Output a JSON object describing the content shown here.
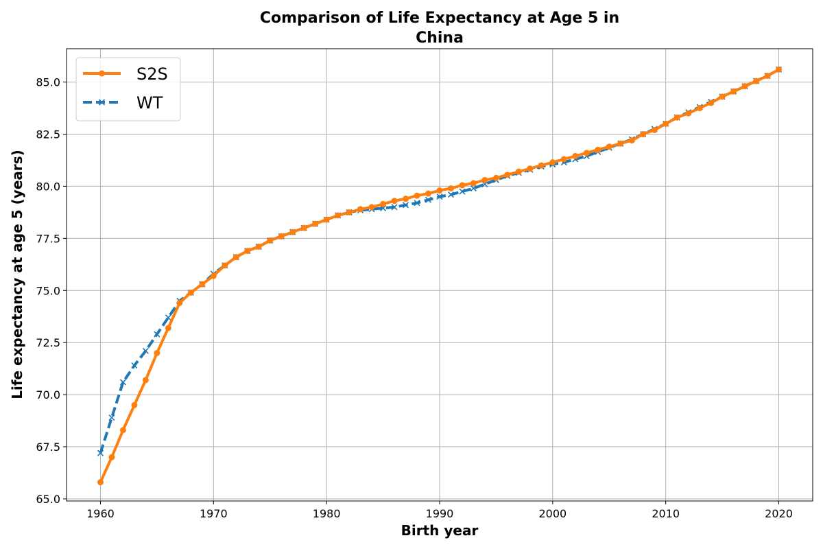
{
  "chart_data": {
    "type": "line",
    "title": "Comparison of Life Expectancy at Age 5 in China",
    "title_lines": [
      "Comparison of Life Expectancy at Age 5 in",
      "China"
    ],
    "xlabel": "Birth year",
    "ylabel": "Life expectancy at age 5 (years)",
    "xlim": [
      1957,
      2023
    ],
    "ylim": [
      64.9,
      86.6
    ],
    "xticks": [
      1960,
      1970,
      1980,
      1990,
      2000,
      2010,
      2020
    ],
    "xtick_labels": [
      "1960",
      "1970",
      "1980",
      "1990",
      "2000",
      "2010",
      "2020"
    ],
    "yticks": [
      65.0,
      67.5,
      70.0,
      72.5,
      75.0,
      77.5,
      80.0,
      82.5,
      85.0
    ],
    "ytick_labels": [
      "65.0",
      "67.5",
      "70.0",
      "72.5",
      "75.0",
      "77.5",
      "80.0",
      "82.5",
      "85.0"
    ],
    "grid": true,
    "legend_position": "top-left",
    "x": [
      1960,
      1961,
      1962,
      1963,
      1964,
      1965,
      1966,
      1967,
      1968,
      1969,
      1970,
      1971,
      1972,
      1973,
      1974,
      1975,
      1976,
      1977,
      1978,
      1979,
      1980,
      1981,
      1982,
      1983,
      1984,
      1985,
      1986,
      1987,
      1988,
      1989,
      1990,
      1991,
      1992,
      1993,
      1994,
      1995,
      1996,
      1997,
      1998,
      1999,
      2000,
      2001,
      2002,
      2003,
      2004,
      2005,
      2006,
      2007,
      2008,
      2009,
      2010,
      2011,
      2012,
      2013,
      2014,
      2015,
      2016,
      2017,
      2018,
      2019,
      2020
    ],
    "series": [
      {
        "name": "S2S",
        "color": "#ff7f0e",
        "line_style": "solid",
        "marker": "circle",
        "values": [
          65.8,
          67.0,
          68.3,
          69.5,
          70.7,
          72.0,
          73.2,
          74.4,
          74.9,
          75.3,
          75.7,
          76.2,
          76.6,
          76.9,
          77.1,
          77.4,
          77.6,
          77.8,
          78.0,
          78.2,
          78.4,
          78.6,
          78.75,
          78.9,
          79.0,
          79.15,
          79.3,
          79.4,
          79.55,
          79.65,
          79.8,
          79.9,
          80.05,
          80.15,
          80.3,
          80.4,
          80.55,
          80.7,
          80.85,
          81.0,
          81.15,
          81.3,
          81.45,
          81.6,
          81.75,
          81.9,
          82.05,
          82.2,
          82.5,
          82.7,
          83.0,
          83.3,
          83.5,
          83.75,
          84.0,
          84.3,
          84.55,
          84.8,
          85.05,
          85.3,
          85.6
        ]
      },
      {
        "name": "WT",
        "color": "#1f77b4",
        "line_style": "dashed",
        "marker": "x",
        "values": [
          67.2,
          68.9,
          70.6,
          71.4,
          72.1,
          72.9,
          73.7,
          74.5,
          74.9,
          75.3,
          75.8,
          76.2,
          76.6,
          76.9,
          77.1,
          77.4,
          77.6,
          77.8,
          78.0,
          78.2,
          78.4,
          78.6,
          78.75,
          78.85,
          78.9,
          78.95,
          79.0,
          79.1,
          79.2,
          79.35,
          79.5,
          79.6,
          79.75,
          79.9,
          80.1,
          80.3,
          80.5,
          80.65,
          80.8,
          80.95,
          81.05,
          81.15,
          81.3,
          81.45,
          81.65,
          81.85,
          82.05,
          82.25,
          82.5,
          82.75,
          83.0,
          83.3,
          83.55,
          83.8,
          84.05,
          84.3,
          84.55,
          84.8,
          85.05,
          85.3,
          85.6
        ]
      }
    ]
  }
}
